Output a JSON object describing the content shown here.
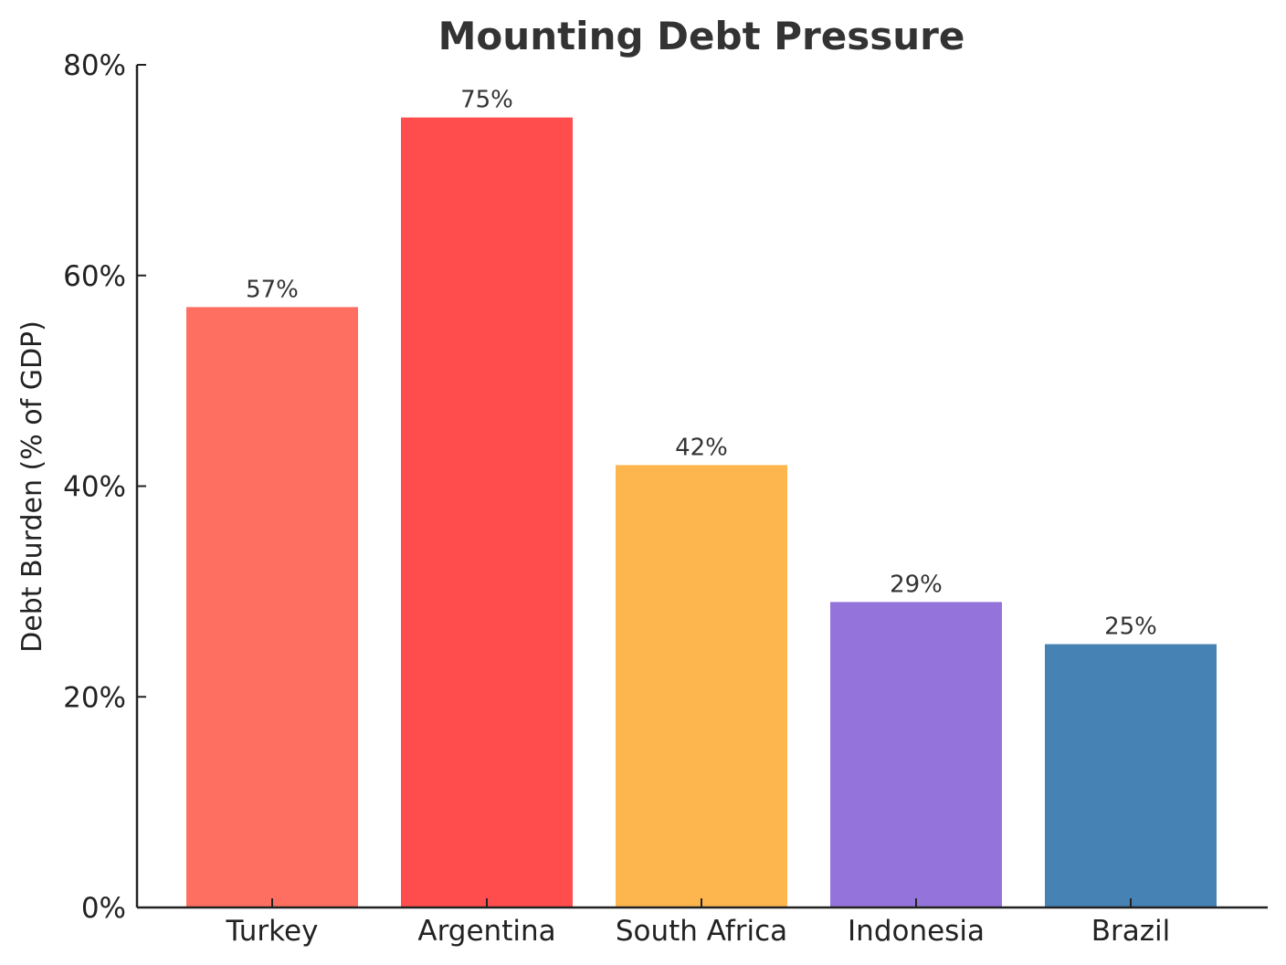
{
  "chart_data": {
    "type": "bar",
    "title": "Mounting Debt Pressure",
    "xlabel": "",
    "ylabel": "Debt Burden (% of GDP)",
    "categories": [
      "Turkey",
      "Argentina",
      "South Africa",
      "Indonesia",
      "Brazil"
    ],
    "values": [
      57,
      75,
      42,
      29,
      25
    ],
    "value_labels": [
      "57%",
      "75%",
      "42%",
      "29%",
      "25%"
    ],
    "colors": [
      "#FF6F61",
      "#FF4C4C",
      "#FDB64E",
      "#9473DB",
      "#4682B4"
    ],
    "ylim": [
      0,
      80
    ],
    "y_ticks": [
      0,
      20,
      40,
      60,
      80
    ],
    "y_tick_labels": [
      "0%",
      "20%",
      "40%",
      "60%",
      "80%"
    ],
    "grid": false,
    "legend": "none"
  }
}
